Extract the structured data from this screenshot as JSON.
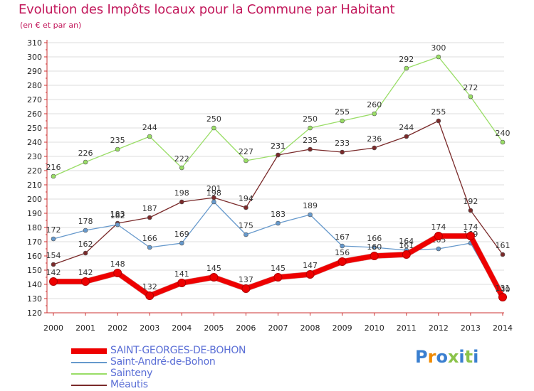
{
  "title": "Evolution des Impôts locaux pour la Commune par Habitant",
  "subtitle": "(en € et par an)",
  "colors": {
    "title": "#c2185b",
    "axis": "#cc3333",
    "grid": "#dddddd",
    "legend_text": "#5b6fd6"
  },
  "logo": {
    "letters": [
      "P",
      "r",
      "o",
      "x",
      "i",
      "t",
      "i"
    ],
    "colors": [
      "#3a7fd0",
      "#f08a00",
      "#3a7fd0",
      "#8bc34a",
      "#3a7fd0",
      "#8bc34a",
      "#3a7fd0"
    ]
  },
  "chart_data": {
    "type": "line",
    "title": "Evolution des Impôts locaux pour la Commune par Habitant",
    "subtitle": "(en € et par an)",
    "x": [
      "2000",
      "2001",
      "2002",
      "2003",
      "2004",
      "2005",
      "2006",
      "2007",
      "2008",
      "2009",
      "2010",
      "2011",
      "2012",
      "2013",
      "2014"
    ],
    "ylim": [
      120,
      310
    ],
    "yticks": [
      120,
      130,
      140,
      150,
      160,
      170,
      180,
      190,
      200,
      210,
      220,
      230,
      240,
      250,
      260,
      270,
      280,
      290,
      300,
      310
    ],
    "grid": true,
    "legend_position": "bottom-left",
    "series": [
      {
        "name": "Sainteny",
        "color": "#99dd66",
        "width": 1.3,
        "values": [
          216,
          226,
          235,
          244,
          222,
          250,
          227,
          231,
          250,
          255,
          260,
          292,
          300,
          272,
          240
        ]
      },
      {
        "name": "Méautis",
        "color": "#7a2a2a",
        "width": 1.3,
        "values": [
          154,
          162,
          183,
          187,
          198,
          201,
          194,
          231,
          235,
          233,
          236,
          244,
          255,
          192,
          161
        ]
      },
      {
        "name": "Saint-André-de-Bohon",
        "color": "#6699cc",
        "width": 1.3,
        "values": [
          172,
          178,
          182,
          166,
          169,
          198,
          175,
          183,
          189,
          167,
          166,
          164,
          165,
          169,
          130
        ]
      },
      {
        "name": "SAINT-GEORGES-DE-BOHON",
        "color": "#ee0000",
        "width": 7,
        "values": [
          142,
          142,
          148,
          132,
          141,
          145,
          137,
          145,
          147,
          156,
          160,
          161,
          174,
          174,
          131
        ]
      }
    ],
    "legend_order": [
      "SAINT-GEORGES-DE-BOHON",
      "Saint-André-de-Bohon",
      "Sainteny",
      "Méautis"
    ]
  }
}
